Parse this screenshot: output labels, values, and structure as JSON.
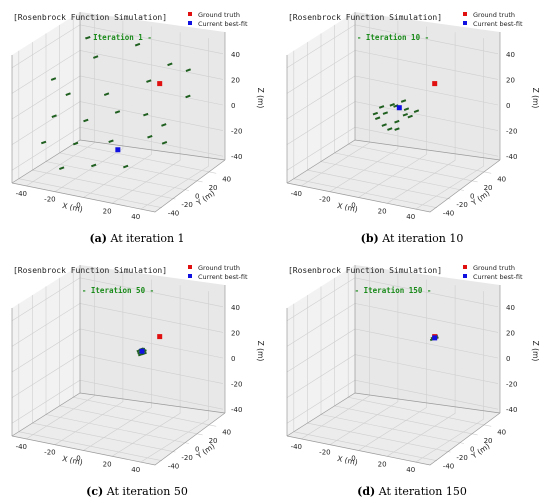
{
  "chart_data": [
    {
      "type": "scatter",
      "subplot": "a",
      "caption_label": "(a)",
      "caption_text": "At iteration 1",
      "title": "[Rosenbrock Function Simulation]",
      "iteration_label": "- Iteration 1 -",
      "xlabel": "X (m)",
      "ylabel": "Y (m)",
      "zlabel": "Z (m)",
      "xlim": [
        -50,
        50
      ],
      "ylim": [
        -50,
        50
      ],
      "zlim": [
        -50,
        50
      ],
      "xticks": [
        "-40",
        "-20",
        "0",
        "20",
        "40"
      ],
      "yticks": [
        "-40",
        "-20",
        "0",
        "20",
        "40"
      ],
      "zticks": [
        "-40",
        "-20",
        "0",
        "20",
        "40"
      ],
      "legend": [
        {
          "name": "Ground truth",
          "color": "#e01010"
        },
        {
          "name": "Current best-fit",
          "color": "#1010e0"
        }
      ],
      "ground_truth": [
        20,
        20,
        20
      ],
      "best_fit": [
        5,
        -10,
        -25
      ],
      "swarm": [
        [
          -35,
          30,
          40
        ],
        [
          -20,
          10,
          35
        ],
        [
          -5,
          40,
          38
        ],
        [
          20,
          35,
          30
        ],
        [
          40,
          20,
          35
        ],
        [
          -40,
          -10,
          20
        ],
        [
          -25,
          -20,
          15
        ],
        [
          -10,
          5,
          10
        ],
        [
          10,
          25,
          18
        ],
        [
          35,
          30,
          10
        ],
        [
          -30,
          -30,
          0
        ],
        [
          -15,
          -15,
          -5
        ],
        [
          0,
          0,
          0
        ],
        [
          15,
          10,
          -2
        ],
        [
          30,
          5,
          -5
        ],
        [
          -35,
          -35,
          -20
        ],
        [
          -15,
          -30,
          -18
        ],
        [
          5,
          -20,
          -15
        ],
        [
          25,
          -5,
          -12
        ],
        [
          40,
          -15,
          -10
        ],
        [
          -20,
          -40,
          -35
        ],
        [
          0,
          -35,
          -30
        ],
        [
          20,
          -30,
          -28
        ]
      ]
    },
    {
      "type": "scatter",
      "subplot": "b",
      "caption_label": "(b)",
      "caption_text": "At iteration 10",
      "title": "[Rosenbrock Function Simulation]",
      "iteration_label": "- Iteration 10 -",
      "xlabel": "X (m)",
      "ylabel": "Y (m)",
      "zlabel": "Z (m)",
      "xlim": [
        -50,
        50
      ],
      "ylim": [
        -50,
        50
      ],
      "zlim": [
        -50,
        50
      ],
      "xticks": [
        "-40",
        "-20",
        "0",
        "20",
        "40"
      ],
      "yticks": [
        "-40",
        "-20",
        "0",
        "20",
        "40"
      ],
      "zticks": [
        "-40",
        "-20",
        "0",
        "20",
        "40"
      ],
      "legend": [
        {
          "name": "Ground truth",
          "color": "#e01010"
        },
        {
          "name": "Current best-fit",
          "color": "#1010e0"
        }
      ],
      "ground_truth": [
        20,
        20,
        20
      ],
      "best_fit": [
        0,
        10,
        0
      ],
      "swarm": [
        [
          -10,
          5,
          0
        ],
        [
          -5,
          0,
          -2
        ],
        [
          0,
          5,
          3
        ],
        [
          5,
          10,
          0
        ],
        [
          10,
          5,
          -3
        ],
        [
          -8,
          -5,
          -5
        ],
        [
          -2,
          -8,
          -8
        ],
        [
          4,
          -2,
          -6
        ],
        [
          8,
          2,
          -1
        ],
        [
          -12,
          0,
          -4
        ],
        [
          2,
          12,
          5
        ],
        [
          6,
          -6,
          -10
        ],
        [
          -4,
          8,
          2
        ],
        [
          12,
          10,
          0
        ],
        [
          0,
          -4,
          -12
        ]
      ]
    },
    {
      "type": "scatter",
      "subplot": "c",
      "caption_label": "(c)",
      "caption_text": "At iteration 50",
      "title": "[Rosenbrock Function Simulation]",
      "iteration_label": "- Iteration 50 -",
      "xlabel": "X (m)",
      "ylabel": "Y (m)",
      "zlabel": "Z (m)",
      "xlim": [
        -50,
        50
      ],
      "ylim": [
        -50,
        50
      ],
      "zlim": [
        -50,
        50
      ],
      "xticks": [
        "-40",
        "-20",
        "0",
        "20",
        "40"
      ],
      "yticks": [
        "-40",
        "-20",
        "0",
        "20",
        "40"
      ],
      "zticks": [
        "-40",
        "-20",
        "0",
        "20",
        "40"
      ],
      "legend": [
        {
          "name": "Ground truth",
          "color": "#e01010"
        },
        {
          "name": "Current best-fit",
          "color": "#1010e0"
        }
      ],
      "ground_truth": [
        20,
        20,
        20
      ],
      "best_fit": [
        10,
        15,
        8
      ],
      "swarm": [
        [
          9,
          14,
          7
        ],
        [
          11,
          15,
          8
        ],
        [
          10,
          16,
          9
        ],
        [
          8,
          15,
          8
        ],
        [
          12,
          14,
          7
        ],
        [
          10,
          13,
          6
        ],
        [
          9,
          16,
          9
        ],
        [
          11,
          16,
          8
        ]
      ]
    },
    {
      "type": "scatter",
      "subplot": "d",
      "caption_label": "(d)",
      "caption_text": "At iteration 150",
      "title": "[Rosenbrock Function Simulation]",
      "iteration_label": "- Iteration 150 -",
      "xlabel": "X (m)",
      "ylabel": "Y (m)",
      "zlabel": "Z (m)",
      "xlim": [
        -50,
        50
      ],
      "ylim": [
        -50,
        50
      ],
      "zlim": [
        -50,
        50
      ],
      "xticks": [
        "-40",
        "-20",
        "0",
        "20",
        "40"
      ],
      "yticks": [
        "-40",
        "-20",
        "0",
        "20",
        "40"
      ],
      "zticks": [
        "-40",
        "-20",
        "0",
        "20",
        "40"
      ],
      "legend": [
        {
          "name": "Ground truth",
          "color": "#e01010"
        },
        {
          "name": "Current best-fit",
          "color": "#1010e0"
        }
      ],
      "ground_truth": [
        20,
        20,
        20
      ],
      "best_fit": [
        20,
        20,
        19
      ],
      "swarm": [
        [
          19,
          20,
          19
        ],
        [
          20,
          19,
          19
        ],
        [
          21,
          20,
          19
        ],
        [
          20,
          21,
          20
        ],
        [
          19,
          19,
          18
        ]
      ]
    }
  ]
}
